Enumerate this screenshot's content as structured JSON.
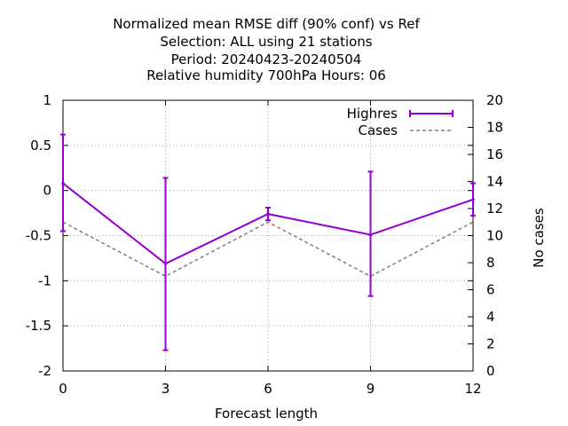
{
  "chart_data": {
    "type": "line",
    "title_lines": [
      "Normalized mean RMSE diff (90% conf) vs Ref",
      "Selection: ALL using    21 stations",
      "Period: 20240423-20240504",
      "Relative humidity 700hPa   Hours:  06"
    ],
    "xlabel": "Forecast length",
    "ylabel_right": "No cases",
    "x": [
      0,
      3,
      6,
      9,
      12
    ],
    "xlim": [
      0,
      12
    ],
    "ylim_left": [
      -2,
      1
    ],
    "ylim_right": [
      0,
      20
    ],
    "x_ticks": [
      "0",
      "3",
      "6",
      "9",
      "12"
    ],
    "y_ticks_left": [
      "1",
      "0.5",
      "0",
      "-0.5",
      "-1",
      "-1.5",
      "-2"
    ],
    "y_ticks_right": [
      "20",
      "18",
      "16",
      "14",
      "12",
      "10",
      "8",
      "6",
      "4",
      "2",
      "0"
    ],
    "grid": true,
    "legend_position": "top-right",
    "series": [
      {
        "name": "Highres",
        "axis": "left",
        "color": "#9400d3",
        "style": "solid with error bars",
        "values": [
          0.08,
          -0.81,
          -0.26,
          -0.49,
          -0.1
        ],
        "err_low": [
          -0.45,
          -1.77,
          -0.33,
          -1.17,
          -0.28
        ],
        "err_high": [
          0.62,
          0.14,
          -0.19,
          0.21,
          0.08
        ]
      },
      {
        "name": "Cases",
        "axis": "right",
        "color": "#808080",
        "style": "dashed",
        "values": [
          11,
          7,
          11,
          7,
          11
        ]
      }
    ]
  }
}
